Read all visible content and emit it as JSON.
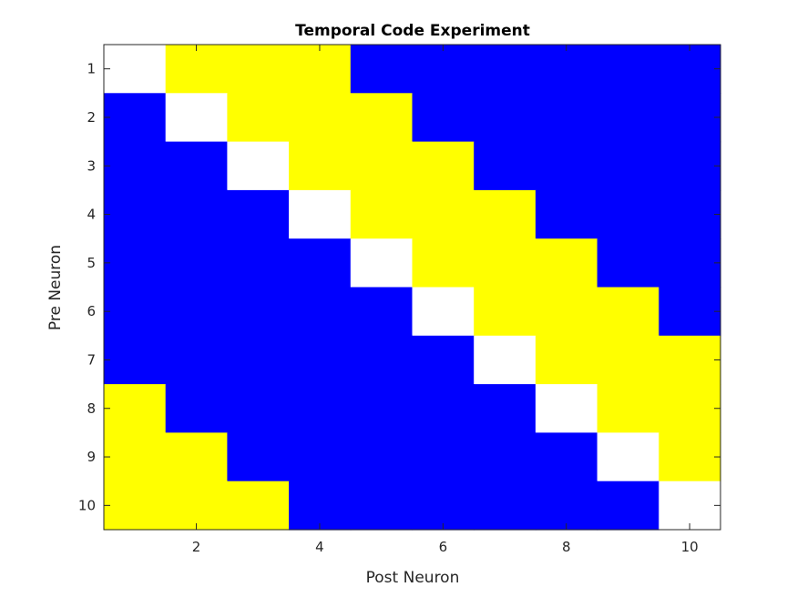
{
  "chart_data": {
    "type": "heatmap",
    "title": "Temporal Code Experiment",
    "xlabel": "Post Neuron",
    "ylabel": "Pre Neuron",
    "x_categories": [
      1,
      2,
      3,
      4,
      5,
      6,
      7,
      8,
      9,
      10
    ],
    "y_categories": [
      1,
      2,
      3,
      4,
      5,
      6,
      7,
      8,
      9,
      10
    ],
    "x_ticks": [
      2,
      4,
      6,
      8,
      10
    ],
    "y_ticks": [
      1,
      2,
      3,
      4,
      5,
      6,
      7,
      8,
      9,
      10
    ],
    "x_tick_labels": [
      "2",
      "4",
      "6",
      "8",
      "10"
    ],
    "y_tick_labels": [
      "1",
      "2",
      "3",
      "4",
      "5",
      "6",
      "7",
      "8",
      "9",
      "10"
    ],
    "color_map": {
      "0": "#0000ff",
      "1": "#ffff00",
      "2": "#ffffff"
    },
    "values": [
      [
        2,
        1,
        1,
        1,
        0,
        0,
        0,
        0,
        0,
        0
      ],
      [
        0,
        2,
        1,
        1,
        1,
        0,
        0,
        0,
        0,
        0
      ],
      [
        0,
        0,
        2,
        1,
        1,
        1,
        0,
        0,
        0,
        0
      ],
      [
        0,
        0,
        0,
        2,
        1,
        1,
        1,
        0,
        0,
        0
      ],
      [
        0,
        0,
        0,
        0,
        2,
        1,
        1,
        1,
        0,
        0
      ],
      [
        0,
        0,
        0,
        0,
        0,
        2,
        1,
        1,
        1,
        0
      ],
      [
        0,
        0,
        0,
        0,
        0,
        0,
        2,
        1,
        1,
        1
      ],
      [
        1,
        0,
        0,
        0,
        0,
        0,
        0,
        2,
        1,
        1
      ],
      [
        1,
        1,
        0,
        0,
        0,
        0,
        0,
        0,
        2,
        1
      ],
      [
        1,
        1,
        1,
        0,
        0,
        0,
        0,
        0,
        0,
        2
      ]
    ]
  }
}
